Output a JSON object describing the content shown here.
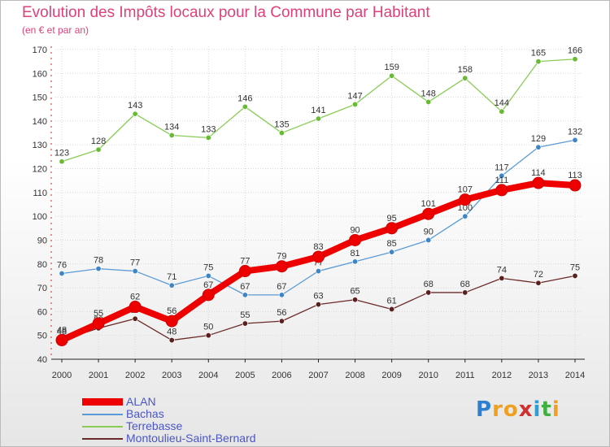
{
  "header": {
    "title": "Evolution des Impôts locaux pour la Commune par Habitant",
    "subtitle": "(en € et par an)"
  },
  "logo": {
    "letters": [
      "P",
      "r",
      "o",
      "x",
      "i",
      "t",
      "i"
    ],
    "colors": [
      "#2e7fd0",
      "#f0a020",
      "#f0a020",
      "#d03030",
      "#2e9fd0",
      "#40b040",
      "#f0a020"
    ]
  },
  "chart_data": {
    "type": "line",
    "title": "Evolution des Impôts locaux pour la Commune par Habitant",
    "subtitle": "(en € et par an)",
    "x": [
      "2000",
      "2001",
      "2002",
      "2003",
      "2004",
      "2005",
      "2006",
      "2007",
      "2008",
      "2009",
      "2010",
      "2011",
      "2012",
      "2013",
      "2014"
    ],
    "ylim": [
      40,
      170
    ],
    "yticks": [
      40,
      50,
      60,
      70,
      80,
      90,
      100,
      110,
      120,
      130,
      140,
      150,
      160,
      170
    ],
    "grid": true,
    "legend": "bottom-left",
    "series": [
      {
        "name": "Terrebasse",
        "color": "#88cc55",
        "point_color": "#66bb33",
        "values": [
          123,
          128,
          143,
          134,
          133,
          146,
          135,
          141,
          147,
          159,
          148,
          158,
          144,
          165,
          166
        ]
      },
      {
        "name": "Bachas",
        "color": "#5b9bd5",
        "point_color": "#3d85c6",
        "values": [
          76,
          78,
          77,
          71,
          75,
          67,
          67,
          77,
          81,
          85,
          90,
          100,
          117,
          129,
          132
        ]
      },
      {
        "name": "Montoulieu-Saint-Bernard",
        "color": "#6b2a2a",
        "point_color": "#5a1f1f",
        "values": [
          48,
          53,
          57,
          48,
          50,
          55,
          56,
          63,
          65,
          61,
          68,
          68,
          74,
          72,
          75
        ]
      },
      {
        "name": "ALAN",
        "color": "#ee0000",
        "point_color": "#ee0000",
        "values": [
          48,
          55,
          62,
          56,
          67,
          77,
          79,
          83,
          90,
          95,
          101,
          107,
          111,
          114,
          113
        ]
      }
    ]
  },
  "legend": {
    "items": [
      "ALAN",
      "Bachas",
      "Terrebasse",
      "Montoulieu-Saint-Bernard"
    ]
  }
}
